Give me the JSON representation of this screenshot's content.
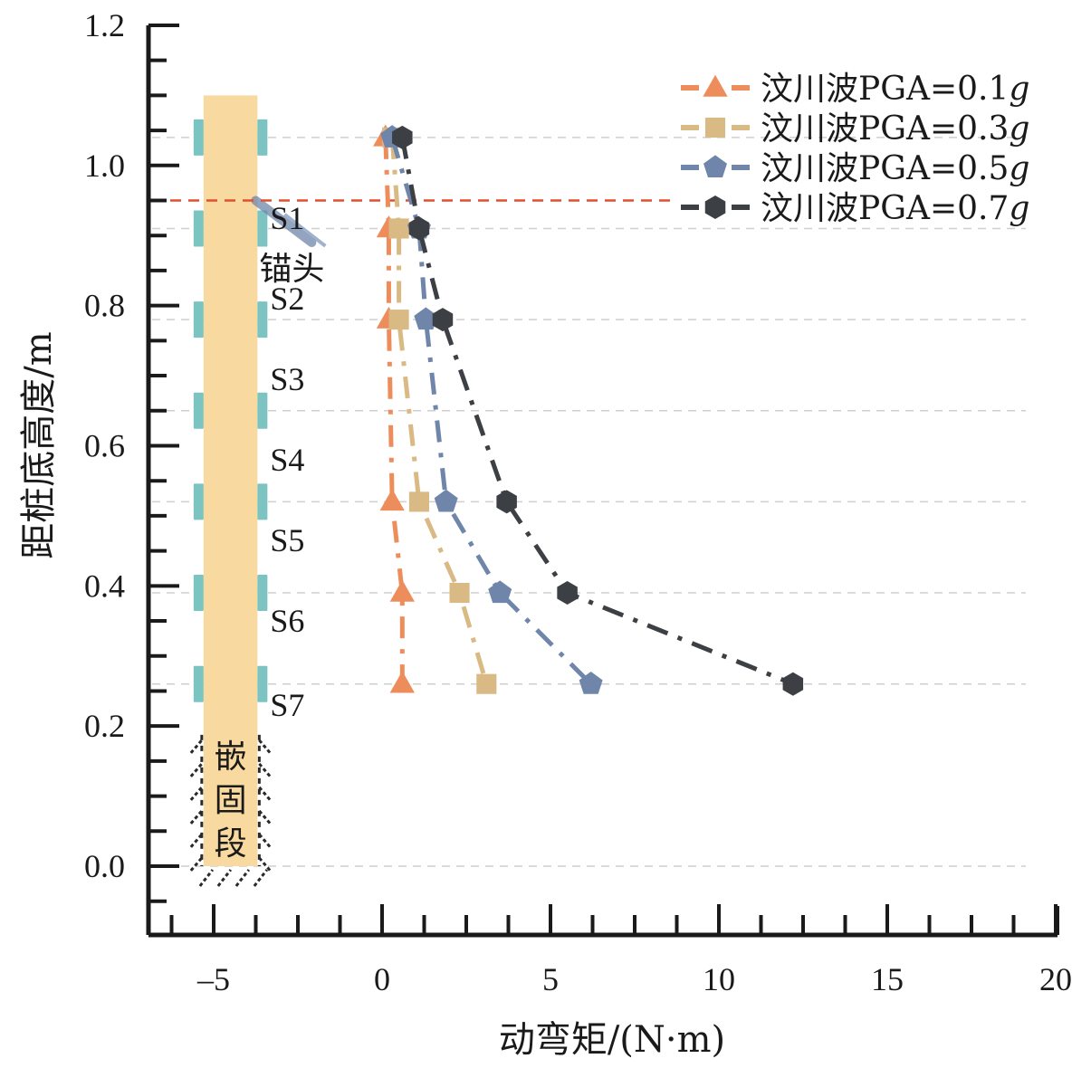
{
  "chart_data": {
    "type": "line",
    "title": "",
    "xlabel": "动弯矩/(N·m)",
    "ylabel": "距桩底高度/m",
    "xlim": [
      -6.9,
      20
    ],
    "ylim": [
      -0.1,
      1.2
    ],
    "xticks": [
      -5,
      0,
      5,
      10,
      15,
      20
    ],
    "xtick_labels": [
      "–5",
      "0",
      "5",
      "10",
      "15",
      "20"
    ],
    "yticks": [
      0.0,
      0.2,
      0.4,
      0.6,
      0.8,
      1.0,
      1.2
    ],
    "ytick_labels": [
      "0.0",
      "0.2",
      "0.4",
      "0.6",
      "0.8",
      "1.0",
      "1.2"
    ],
    "grid": "horizontal dashed at sensor heights",
    "gridlines_y": [
      1.04,
      0.91,
      0.78,
      0.65,
      0.52,
      0.39,
      0.26,
      0.0
    ],
    "legend_position": "top-right",
    "series": [
      {
        "name": "汶川波PGA=0.1",
        "name_suffix": "g",
        "color": "#EE8D5C",
        "marker": "triangle",
        "y": [
          1.04,
          0.91,
          0.78,
          0.52,
          0.39,
          0.26
        ],
        "x": [
          0.1,
          0.2,
          0.2,
          0.3,
          0.6,
          0.6
        ]
      },
      {
        "name": "汶川波PGA=0.3",
        "name_suffix": "g",
        "color": "#D9B984",
        "marker": "square",
        "y": [
          1.04,
          0.91,
          0.78,
          0.52,
          0.39,
          0.26
        ],
        "x": [
          0.3,
          0.5,
          0.5,
          1.1,
          2.3,
          3.1
        ]
      },
      {
        "name": "汶川波PGA=0.5",
        "name_suffix": "g",
        "color": "#6F86AA",
        "marker": "pentagon",
        "y": [
          1.04,
          0.91,
          0.78,
          0.52,
          0.39,
          0.26
        ],
        "x": [
          0.3,
          1.1,
          1.3,
          1.9,
          3.5,
          6.2
        ]
      },
      {
        "name": "汶川波PGA=0.7",
        "name_suffix": "g",
        "color": "#3C4045",
        "marker": "hexagon",
        "y": [
          1.04,
          0.91,
          0.78,
          0.52,
          0.39,
          0.26
        ],
        "x": [
          0.6,
          1.1,
          1.8,
          3.7,
          5.5,
          12.2
        ]
      }
    ],
    "reference_line": {
      "y": 0.95,
      "color": "#E0502F",
      "style": "dashed"
    },
    "pile_diagram": {
      "x_range": [
        -5.3,
        -3.7
      ],
      "y_range": [
        0.0,
        1.1
      ],
      "fill_color": "#F8D9A0",
      "sensor_color": "#7CC4C2",
      "sensor_heights": [
        1.04,
        0.91,
        0.78,
        0.65,
        0.52,
        0.39,
        0.26
      ],
      "sensor_labels": [
        "S1",
        "S2",
        "S3",
        "S4",
        "S5",
        "S6",
        "S7"
      ],
      "sensor_label_heights": [
        0.925,
        0.81,
        0.695,
        0.58,
        0.465,
        0.35,
        0.23
      ],
      "anchor_label": "锚头",
      "anchor_label_height": 0.855,
      "embedded_label": [
        "嵌",
        "固",
        "段"
      ],
      "embedded_range": [
        0.0,
        0.19
      ]
    }
  }
}
